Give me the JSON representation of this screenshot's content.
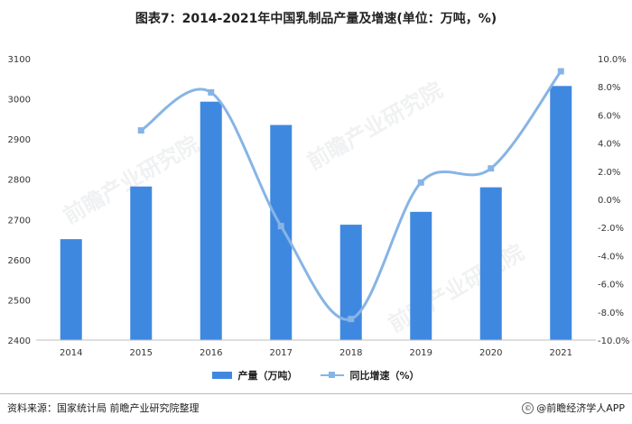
{
  "title": "图表7：2014-2021年中国乳制品产量及增速(单位：万吨，%)",
  "legend": {
    "bar_label": "产量（万吨）",
    "line_label": "同比增速（%）"
  },
  "source": "资料来源：国家统计局 前瞻产业研究院整理",
  "credit": "@前瞻经济学人APP",
  "watermark": "前瞻产业研究院",
  "colors": {
    "bar": "#3f88e0",
    "line": "#87b4e6"
  },
  "chart_data": {
    "type": "bar",
    "categories": [
      "2014",
      "2015",
      "2016",
      "2017",
      "2018",
      "2019",
      "2020",
      "2021"
    ],
    "series": [
      {
        "name": "产量（万吨）",
        "type": "bar",
        "axis": "left",
        "values": [
          2651,
          2782,
          2993,
          2935,
          2687,
          2719,
          2780,
          3032
        ]
      },
      {
        "name": "同比增速（%）",
        "type": "line",
        "axis": "right",
        "values": [
          null,
          4.9,
          7.6,
          -1.9,
          -8.5,
          1.2,
          2.2,
          9.1
        ]
      }
    ],
    "y_left": {
      "min": 2400,
      "max": 3100,
      "ticks": [
        "2400",
        "2500",
        "2600",
        "2700",
        "2800",
        "2900",
        "3000",
        "3100"
      ]
    },
    "y_right": {
      "min": -10,
      "max": 10,
      "ticks": [
        "-10.0%",
        "-8.0%",
        "-6.0%",
        "-4.0%",
        "-2.0%",
        "0.0%",
        "2.0%",
        "4.0%",
        "6.0%",
        "8.0%",
        "10.0%"
      ]
    },
    "grid": false,
    "legend_position": "bottom"
  }
}
